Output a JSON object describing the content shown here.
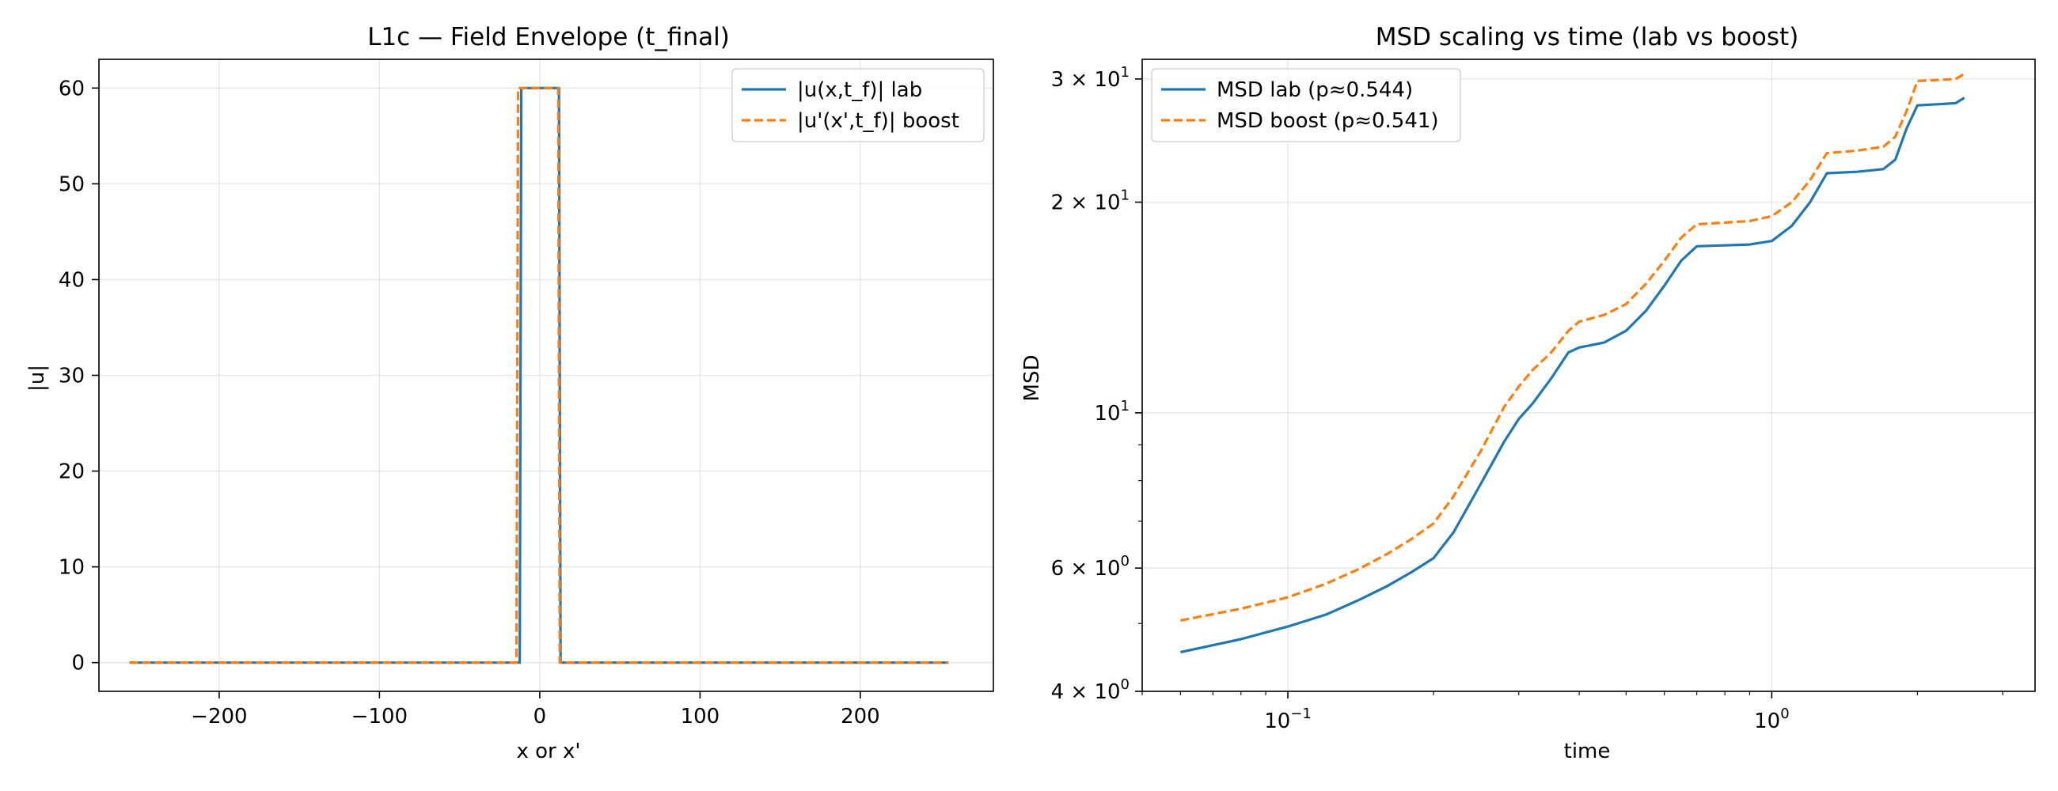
{
  "chart_data": [
    {
      "type": "line",
      "title": "L1c — Field Envelope (t_final)",
      "xlabel": "x or x'",
      "ylabel": "|u|",
      "xlim": [
        -275,
        283
      ],
      "ylim": [
        -3,
        63
      ],
      "xticks": [
        -200,
        -100,
        0,
        100,
        200
      ],
      "xtick_labels": [
        "−200",
        "−100",
        "0",
        "100",
        "200"
      ],
      "yticks": [
        0,
        10,
        20,
        30,
        40,
        50,
        60
      ],
      "ytick_labels": [
        "0",
        "10",
        "20",
        "30",
        "40",
        "50",
        "60"
      ],
      "grid": true,
      "legend_position": "top-right",
      "series": [
        {
          "name": "|u(x,t_f)| lab",
          "color": "#1f77b4",
          "style": "solid",
          "x": [
            -256,
            -12.5,
            -11.5,
            12,
            13,
            255
          ],
          "y": [
            0,
            0,
            60,
            60,
            0,
            0
          ]
        },
        {
          "name": "|u'(x',t_f)| boost",
          "color": "#ff7f0e",
          "style": "dashed",
          "x": [
            -256,
            -14.5,
            -13.5,
            11.5,
            12.5,
            255
          ],
          "y": [
            0,
            0,
            60,
            60,
            0,
            0
          ]
        }
      ]
    },
    {
      "type": "line",
      "title": "MSD scaling vs time (lab vs boost)",
      "xlabel": "time",
      "ylabel": "MSD",
      "xscale": "log",
      "yscale": "log",
      "xlim": [
        0.05,
        3.5
      ],
      "ylim": [
        4,
        32
      ],
      "xticks": [
        0.1,
        1
      ],
      "xtick_labels": [
        {
          "base": "10",
          "exp": "−1"
        },
        {
          "base": "10",
          "exp": "0"
        }
      ],
      "yticks": [
        4,
        6,
        10,
        20,
        30
      ],
      "ytick_labels": [
        {
          "coef": "4",
          "base": "10",
          "exp": "0"
        },
        {
          "coef": "6",
          "base": "10",
          "exp": "0"
        },
        {
          "coef": "",
          "base": "10",
          "exp": "1"
        },
        {
          "coef": "2",
          "base": "10",
          "exp": "1"
        },
        {
          "coef": "3",
          "base": "10",
          "exp": "1"
        }
      ],
      "grid": true,
      "legend_position": "top-left",
      "series": [
        {
          "name": "MSD lab (p≈0.544)",
          "color": "#1f77b4",
          "style": "solid",
          "x": [
            0.06,
            0.08,
            0.1,
            0.12,
            0.14,
            0.16,
            0.18,
            0.2,
            0.22,
            0.25,
            0.28,
            0.3,
            0.32,
            0.35,
            0.38,
            0.4,
            0.45,
            0.5,
            0.55,
            0.6,
            0.65,
            0.7,
            0.8,
            0.9,
            1.0,
            1.1,
            1.2,
            1.3,
            1.5,
            1.7,
            1.8,
            1.9,
            2.0,
            2.2,
            2.4,
            2.5
          ],
          "y": [
            4.55,
            4.75,
            4.95,
            5.15,
            5.4,
            5.65,
            5.92,
            6.2,
            6.75,
            7.9,
            9.1,
            9.8,
            10.3,
            11.2,
            12.2,
            12.4,
            12.6,
            13.1,
            14.0,
            15.2,
            16.5,
            17.3,
            17.35,
            17.4,
            17.6,
            18.5,
            20.0,
            22.0,
            22.1,
            22.3,
            23.0,
            25.5,
            27.5,
            27.6,
            27.7,
            28.2
          ]
        },
        {
          "name": "MSD boost (p≈0.541)",
          "color": "#ff7f0e",
          "style": "dashed",
          "x": [
            0.06,
            0.08,
            0.1,
            0.12,
            0.14,
            0.16,
            0.18,
            0.2,
            0.22,
            0.25,
            0.28,
            0.3,
            0.32,
            0.35,
            0.38,
            0.4,
            0.45,
            0.5,
            0.55,
            0.6,
            0.65,
            0.7,
            0.8,
            0.9,
            1.0,
            1.1,
            1.2,
            1.3,
            1.5,
            1.7,
            1.8,
            1.9,
            2.0,
            2.2,
            2.4,
            2.5
          ],
          "y": [
            5.05,
            5.25,
            5.45,
            5.7,
            5.98,
            6.28,
            6.6,
            6.95,
            7.6,
            8.8,
            10.2,
            10.9,
            11.5,
            12.2,
            13.1,
            13.5,
            13.8,
            14.3,
            15.3,
            16.5,
            17.8,
            18.6,
            18.7,
            18.8,
            19.1,
            20.0,
            21.5,
            23.5,
            23.7,
            24.0,
            24.8,
            27.0,
            29.8,
            29.9,
            30.0,
            30.5
          ]
        }
      ]
    }
  ]
}
